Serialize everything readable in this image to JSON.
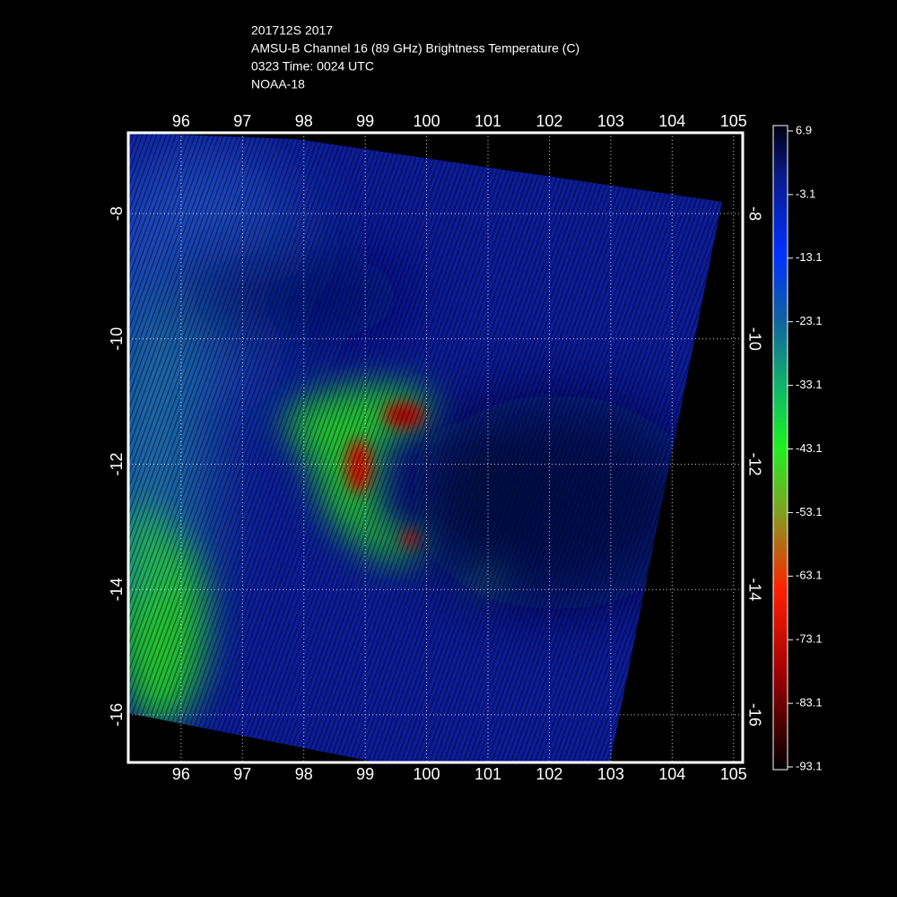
{
  "header": {
    "lines": [
      "201712S 2017",
      "AMSU-B Channel 16 (89 GHz) Brightness Temperature (C)",
      "0323 Time: 0024 UTC",
      "NOAA-18"
    ]
  },
  "map": {
    "xlim": [
      95.14,
      105.15
    ],
    "ylim": [
      -16.76,
      -6.71
    ],
    "xticks": [
      96,
      97,
      98,
      99,
      100,
      101,
      102,
      103,
      104,
      105
    ],
    "yticks": [
      -8,
      -10,
      -12,
      -14,
      -16
    ],
    "grid": true
  },
  "colorbar": {
    "lim": [
      -93.1,
      6.9
    ],
    "ticks": [
      6.9,
      -3.1,
      -13.1,
      -23.1,
      -33.1,
      -43.1,
      -53.1,
      -63.1,
      -73.1,
      -83.1,
      -93.1
    ]
  }
}
